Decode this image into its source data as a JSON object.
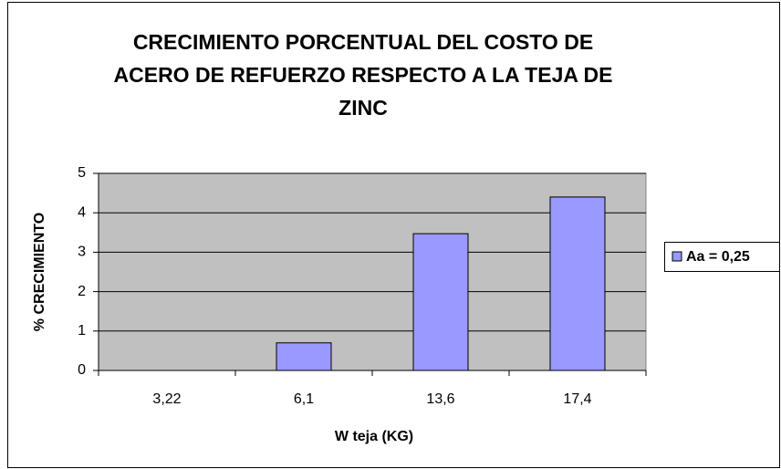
{
  "chart_data": {
    "type": "bar",
    "title": "CRECIMIENTO PORCENTUAL DEL COSTO DE ACERO DE REFUERZO RESPECTO A LA TEJA DE ZINC",
    "x_label": "W teja (KG)",
    "y_label": "% CRECIMIENTO",
    "categories": [
      "3,22",
      "6,1",
      "13,6",
      "17,4"
    ],
    "series": [
      {
        "name": "Aa = 0,25",
        "color": "#9999ff",
        "values": [
          0,
          0.7,
          3.47,
          4.4
        ]
      }
    ],
    "ylim": [
      0,
      5
    ],
    "yticks": [
      0,
      1,
      2,
      3,
      4,
      5
    ],
    "grid": true,
    "legend": "right"
  }
}
